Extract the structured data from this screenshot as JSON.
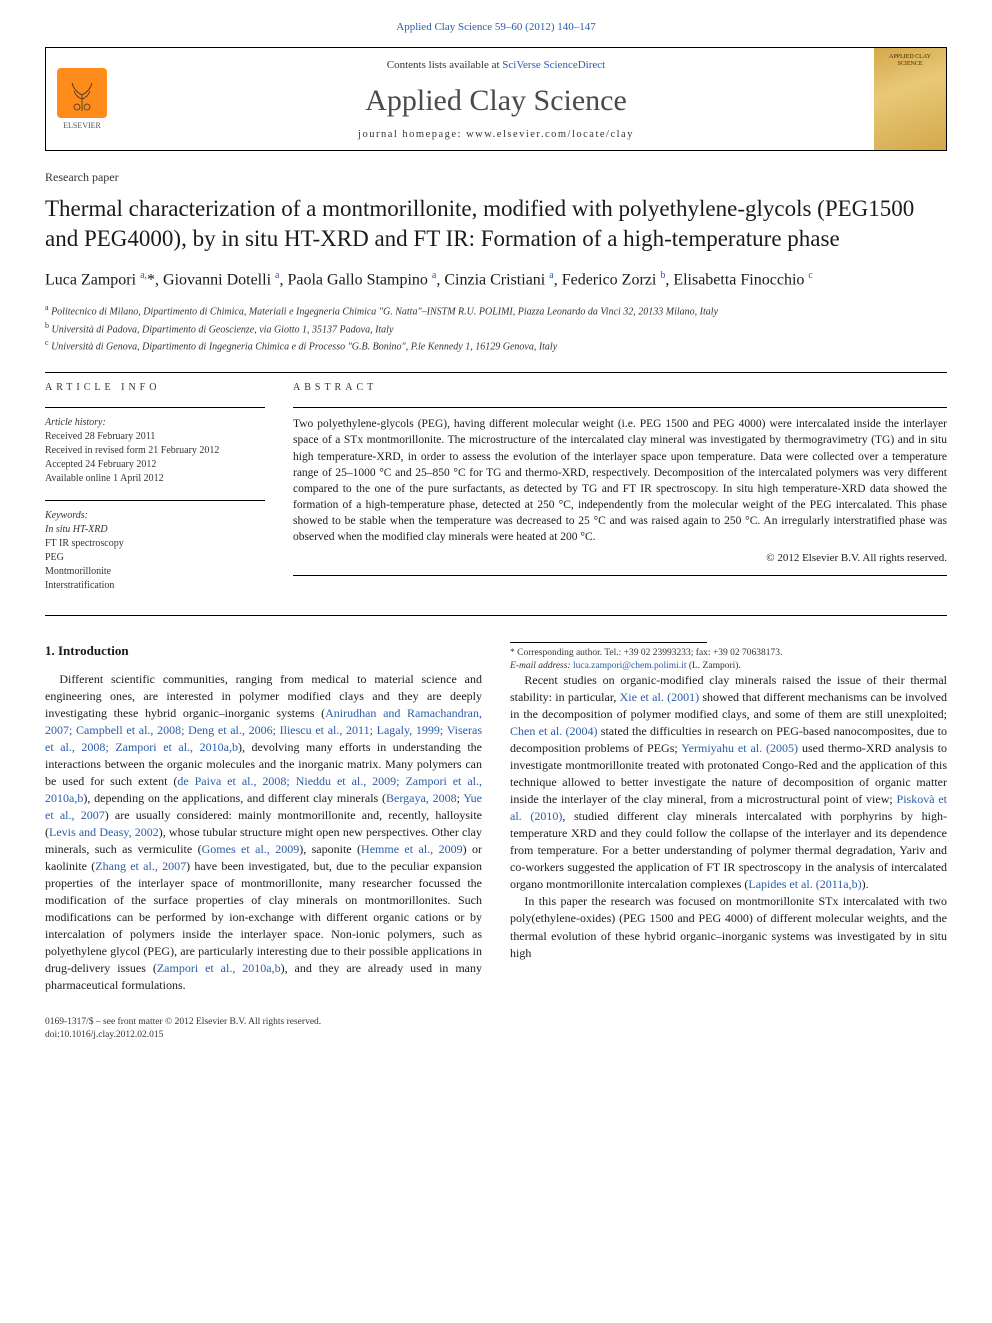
{
  "meta": {
    "journal_ref": "Applied Clay Science 59–60 (2012) 140–147",
    "contents_prefix": "Contents lists available at ",
    "contents_link": "SciVerse ScienceDirect",
    "journal_name": "Applied Clay Science",
    "homepage_prefix": "journal homepage: ",
    "homepage": "www.elsevier.com/locate/clay",
    "elsevier_label": "ELSEVIER",
    "cover_text": "APPLIED CLAY SCIENCE"
  },
  "paper_type": "Research paper",
  "title": "Thermal characterization of a montmorillonite, modified with polyethylene-glycols (PEG1500 and PEG4000), by in situ HT-XRD and FT IR: Formation of a high-temperature phase",
  "authors_html": "Luca Zampori <span class='sup'>a,</span>*, Giovanni Dotelli <span class='sup'>a</span>, Paola Gallo Stampino <span class='sup'>a</span>, Cinzia Cristiani <span class='sup'>a</span>, Federico Zorzi <span class='sup'>b</span>, Elisabetta Finocchio <span class='sup'>c</span>",
  "affiliations": [
    {
      "sup": "a",
      "text": "Politecnico di Milano, Dipartimento di Chimica, Materiali e Ingegneria Chimica \"G. Natta\"–INSTM R.U. POLIMI, Piazza Leonardo da Vinci 32, 20133 Milano, Italy"
    },
    {
      "sup": "b",
      "text": "Università di Padova, Dipartimento di Geoscienze, via Giotto 1, 35137 Padova, Italy"
    },
    {
      "sup": "c",
      "text": "Università di Genova, Dipartimento di Ingegneria Chimica e di Processo \"G.B. Bonino\", P.le Kennedy 1, 16129 Genova, Italy"
    }
  ],
  "article_info": {
    "head": "ARTICLE INFO",
    "history_label": "Article history:",
    "history": [
      "Received 28 February 2011",
      "Received in revised form 21 February 2012",
      "Accepted 24 February 2012",
      "Available online 1 April 2012"
    ],
    "keywords_label": "Keywords:",
    "keywords": [
      "In situ HT-XRD",
      "FT IR spectroscopy",
      "PEG",
      "Montmorillonite",
      "Interstratification"
    ]
  },
  "abstract": {
    "head": "ABSTRACT",
    "text": "Two polyethylene-glycols (PEG), having different molecular weight (i.e. PEG 1500 and PEG 4000) were intercalated inside the interlayer space of a STx montmorillonite. The microstructure of the intercalated clay mineral was investigated by thermogravimetry (TG) and in situ high temperature-XRD, in order to assess the evolution of the interlayer space upon temperature. Data were collected over a temperature range of 25–1000 °C and 25–850 °C for TG and thermo-XRD, respectively. Decomposition of the intercalated polymers was very different compared to the one of the pure surfactants, as detected by TG and FT IR spectroscopy. In situ high temperature-XRD data showed the formation of a high-temperature phase, detected at 250 °C, independently from the molecular weight of the PEG intercalated. This phase showed to be stable when the temperature was decreased to 25 °C and was raised again to 250 °C. An irregularly interstratified phase was observed when the modified clay minerals were heated at 200 °C.",
    "copyright": "© 2012 Elsevier B.V. All rights reserved."
  },
  "body": {
    "intro_head": "1. Introduction",
    "p1": "Different scientific communities, ranging from medical to material science and engineering ones, are interested in polymer modified clays and they are deeply investigating these hybrid organic–inorganic systems (<span class='ref'>Anirudhan and Ramachandran, 2007; Campbell et al., 2008; Deng et al., 2006; Iliescu et al., 2011; Lagaly, 1999; Viseras et al., 2008; Zampori et al., 2010a,b</span>), devolving many efforts in understanding the interactions between the organic molecules and the inorganic matrix. Many polymers can be used for such extent (<span class='ref'>de Paiva et al., 2008; Nieddu et al., 2009; Zampori et al., 2010a,b</span>), depending on the applications, and different clay minerals (<span class='ref'>Bergaya, 2008</span>; <span class='ref'>Yue et al., 2007</span>) are usually considered: mainly montmorillonite and, recently, halloysite (<span class='ref'>Levis and Deasy, 2002</span>), whose tubular structure might open new perspectives. Other clay minerals, such as vermiculite (<span class='ref'>Gomes et al., 2009</span>), saponite (<span class='ref'>Hemme et al., 2009</span>) or kaolinite (<span class='ref'>Zhang et al., 2007</span>) have been investigated, but, due to the peculiar expansion properties of the interlayer space of montmorillonite, many researcher focussed the modification of the surface properties of clay minerals on montmorillonites. Such modifications can be performed by ion-exchange with different organic cations or by intercalation of polymers inside the interlayer space. Non-ionic polymers, such as polyethylene glycol (PEG), are particularly interesting due to their possible applications in drug-delivery issues (<span class='ref'>Zampori et al., 2010a,b</span>), and they are already used in many pharmaceutical formulations.",
    "p2": "Recent studies on organic-modified clay minerals raised the issue of their thermal stability: in particular, <span class='ref'>Xie et al. (2001)</span> showed that different mechanisms can be involved in the decomposition of polymer modified clays, and some of them are still unexploited; <span class='ref'>Chen et al. (2004)</span> stated the difficulties in research on PEG-based nanocomposites, due to decomposition problems of PEGs; <span class='ref'>Yermiyahu et al. (2005)</span> used thermo-XRD analysis to investigate montmorillonite treated with protonated Congo-Red and the application of this technique allowed to better investigate the nature of decomposition of organic matter inside the interlayer of the clay mineral, from a microstructural point of view; <span class='ref'>Piskovà et al. (2010)</span>, studied different clay minerals intercalated with porphyrins by high-temperature XRD and they could follow the collapse of the interlayer and its dependence from temperature. For a better understanding of polymer thermal degradation, Yariv and co-workers suggested the application of FT IR spectroscopy in the analysis of intercalated organo montmorillonite intercalation complexes (<span class='ref'>Lapides et al. (2011a,b)</span>).",
    "p3": "In this paper the research was focused on montmorillonite STx intercalated with two poly(ethylene-oxides) (PEG 1500 and PEG 4000) of different molecular weights, and the thermal evolution of these hybrid organic–inorganic systems was investigated by in situ high"
  },
  "footnote": {
    "corr_label": "* Corresponding author. Tel.: +39 02 23993233; fax: +39 02 70638173.",
    "email_label": "E-mail address:",
    "email": "luca.zampori@chem.polimi.it",
    "email_who": "(L. Zampori)."
  },
  "bottom": {
    "line1": "0169-1317/$ – see front matter © 2012 Elsevier B.V. All rights reserved.",
    "line2": "doi:10.1016/j.clay.2012.02.015"
  },
  "colors": {
    "link": "#2a5caa",
    "text": "#1a1a1a",
    "cover_bg": "#d4a84a",
    "elsevier_orange": "#ff8c1a"
  }
}
